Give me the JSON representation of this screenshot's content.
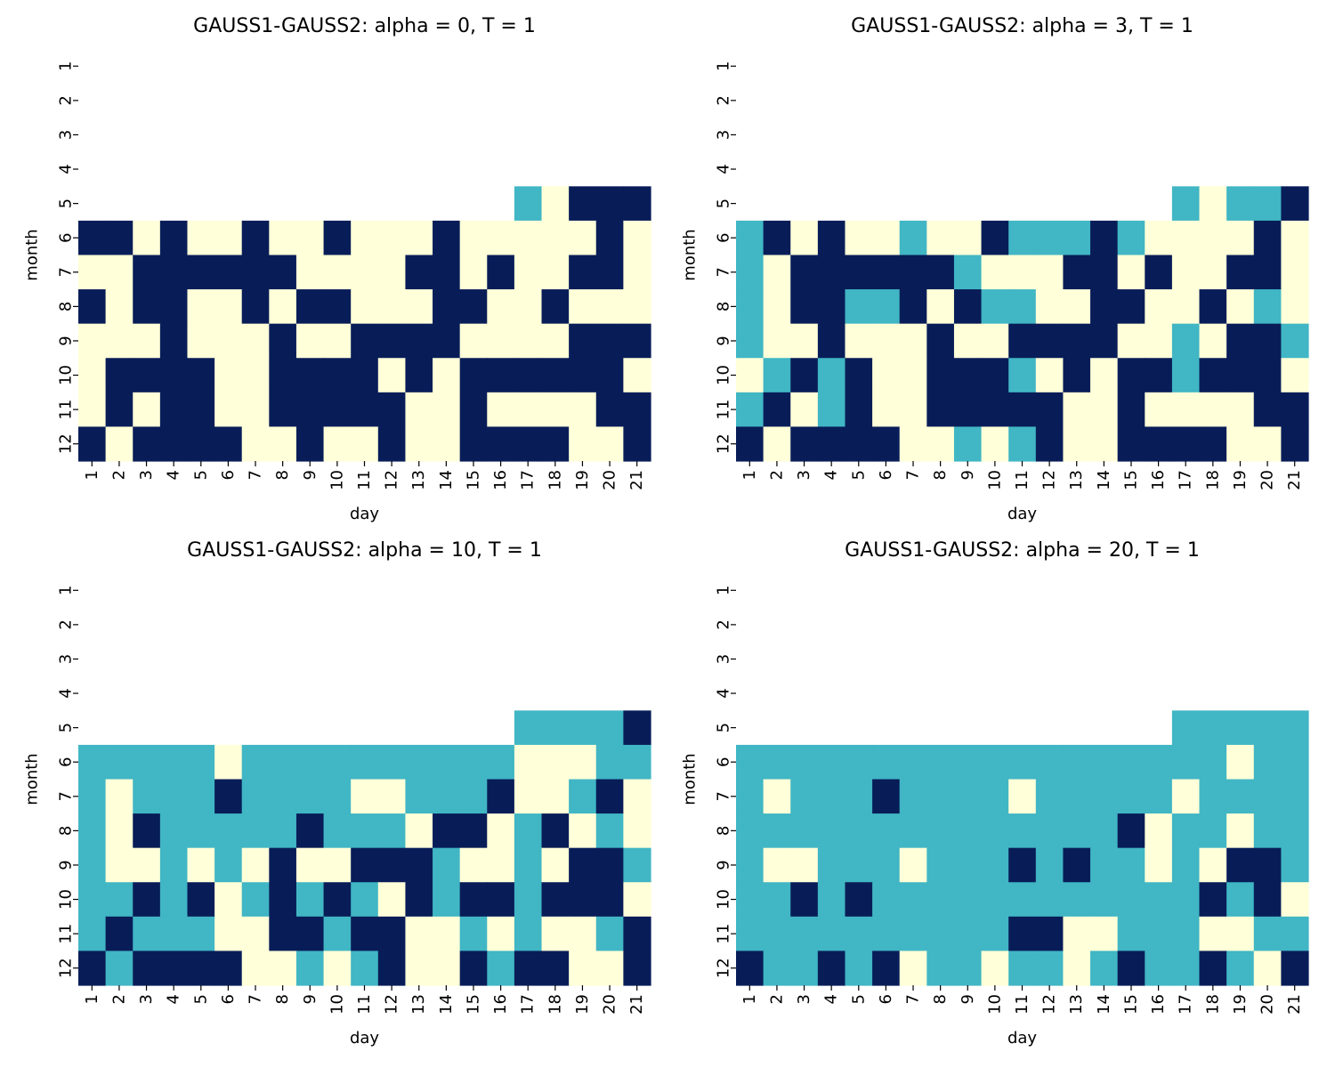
{
  "palette": {
    "0": "#ffffd9",
    "1": "#41b6c4",
    "2": "#081d58"
  },
  "chart_data": [
    {
      "type": "heatmap",
      "title": "GAUSS1-GAUSS2: alpha = 0, T = 1",
      "xlabel": "day",
      "ylabel": "month",
      "x": [
        "1",
        "2",
        "3",
        "4",
        "5",
        "6",
        "7",
        "8",
        "9",
        "10",
        "11",
        "12",
        "13",
        "14",
        "15",
        "16",
        "17",
        "18",
        "19",
        "20",
        "21"
      ],
      "y": [
        "1",
        "2",
        "3",
        "4",
        "5",
        "6",
        "7",
        "8",
        "9",
        "10",
        "11",
        "12"
      ],
      "values": [
        [
          null,
          null,
          null,
          null,
          null,
          null,
          null,
          null,
          null,
          null,
          null,
          null,
          null,
          null,
          null,
          null,
          null,
          null,
          null,
          null,
          null
        ],
        [
          null,
          null,
          null,
          null,
          null,
          null,
          null,
          null,
          null,
          null,
          null,
          null,
          null,
          null,
          null,
          null,
          null,
          null,
          null,
          null,
          null
        ],
        [
          null,
          null,
          null,
          null,
          null,
          null,
          null,
          null,
          null,
          null,
          null,
          null,
          null,
          null,
          null,
          null,
          null,
          null,
          null,
          null,
          null
        ],
        [
          null,
          null,
          null,
          null,
          null,
          null,
          null,
          null,
          null,
          null,
          null,
          null,
          null,
          null,
          null,
          null,
          null,
          null,
          null,
          null,
          null
        ],
        [
          null,
          null,
          null,
          null,
          null,
          null,
          null,
          null,
          null,
          null,
          null,
          null,
          null,
          null,
          null,
          null,
          1,
          0,
          2,
          2,
          2
        ],
        [
          2,
          2,
          0,
          2,
          0,
          0,
          2,
          0,
          0,
          2,
          0,
          0,
          0,
          2,
          0,
          0,
          0,
          0,
          0,
          2,
          0
        ],
        [
          0,
          0,
          2,
          2,
          2,
          2,
          2,
          2,
          0,
          0,
          0,
          0,
          2,
          2,
          0,
          2,
          0,
          0,
          2,
          2,
          0
        ],
        [
          2,
          0,
          2,
          2,
          0,
          0,
          2,
          0,
          2,
          2,
          0,
          0,
          0,
          2,
          2,
          0,
          0,
          2,
          0,
          0,
          0
        ],
        [
          0,
          0,
          0,
          2,
          0,
          0,
          0,
          2,
          0,
          0,
          2,
          2,
          2,
          2,
          0,
          0,
          0,
          0,
          2,
          2,
          2
        ],
        [
          0,
          2,
          2,
          2,
          2,
          0,
          0,
          2,
          2,
          2,
          2,
          0,
          2,
          0,
          2,
          2,
          2,
          2,
          2,
          2,
          0
        ],
        [
          0,
          2,
          0,
          2,
          2,
          0,
          0,
          2,
          2,
          2,
          2,
          2,
          0,
          0,
          2,
          0,
          0,
          0,
          0,
          2,
          2
        ],
        [
          2,
          0,
          2,
          2,
          2,
          2,
          0,
          0,
          2,
          0,
          0,
          2,
          0,
          0,
          2,
          2,
          2,
          2,
          0,
          0,
          2
        ]
      ]
    },
    {
      "type": "heatmap",
      "title": "GAUSS1-GAUSS2: alpha = 3, T = 1",
      "xlabel": "day",
      "ylabel": "month",
      "x": [
        "1",
        "2",
        "3",
        "4",
        "5",
        "6",
        "7",
        "8",
        "9",
        "10",
        "11",
        "12",
        "13",
        "14",
        "15",
        "16",
        "17",
        "18",
        "19",
        "20",
        "21"
      ],
      "y": [
        "1",
        "2",
        "3",
        "4",
        "5",
        "6",
        "7",
        "8",
        "9",
        "10",
        "11",
        "12"
      ],
      "values": [
        [
          null,
          null,
          null,
          null,
          null,
          null,
          null,
          null,
          null,
          null,
          null,
          null,
          null,
          null,
          null,
          null,
          null,
          null,
          null,
          null,
          null
        ],
        [
          null,
          null,
          null,
          null,
          null,
          null,
          null,
          null,
          null,
          null,
          null,
          null,
          null,
          null,
          null,
          null,
          null,
          null,
          null,
          null,
          null
        ],
        [
          null,
          null,
          null,
          null,
          null,
          null,
          null,
          null,
          null,
          null,
          null,
          null,
          null,
          null,
          null,
          null,
          null,
          null,
          null,
          null,
          null
        ],
        [
          null,
          null,
          null,
          null,
          null,
          null,
          null,
          null,
          null,
          null,
          null,
          null,
          null,
          null,
          null,
          null,
          null,
          null,
          null,
          null,
          null
        ],
        [
          null,
          null,
          null,
          null,
          null,
          null,
          null,
          null,
          null,
          null,
          null,
          null,
          null,
          null,
          null,
          null,
          1,
          0,
          1,
          1,
          2
        ],
        [
          1,
          2,
          0,
          2,
          0,
          0,
          1,
          0,
          0,
          2,
          1,
          1,
          1,
          2,
          1,
          0,
          0,
          0,
          0,
          2,
          0
        ],
        [
          1,
          0,
          2,
          2,
          2,
          2,
          2,
          2,
          1,
          0,
          0,
          0,
          2,
          2,
          0,
          2,
          0,
          0,
          2,
          2,
          0
        ],
        [
          1,
          0,
          2,
          2,
          1,
          1,
          2,
          0,
          2,
          1,
          1,
          0,
          0,
          2,
          2,
          0,
          0,
          2,
          0,
          1,
          0
        ],
        [
          1,
          0,
          0,
          2,
          0,
          0,
          0,
          2,
          0,
          0,
          2,
          2,
          2,
          2,
          0,
          0,
          1,
          0,
          2,
          2,
          1
        ],
        [
          0,
          1,
          2,
          1,
          2,
          0,
          0,
          2,
          2,
          2,
          1,
          0,
          2,
          0,
          2,
          2,
          1,
          2,
          2,
          2,
          0
        ],
        [
          1,
          2,
          0,
          1,
          2,
          0,
          0,
          2,
          2,
          2,
          2,
          2,
          0,
          0,
          2,
          0,
          0,
          0,
          0,
          2,
          2
        ],
        [
          2,
          0,
          2,
          2,
          2,
          2,
          0,
          0,
          1,
          0,
          1,
          2,
          0,
          0,
          2,
          2,
          2,
          2,
          0,
          0,
          2
        ]
      ]
    },
    {
      "type": "heatmap",
      "title": "GAUSS1-GAUSS2: alpha = 10, T = 1",
      "xlabel": "day",
      "ylabel": "month",
      "x": [
        "1",
        "2",
        "3",
        "4",
        "5",
        "6",
        "7",
        "8",
        "9",
        "10",
        "11",
        "12",
        "13",
        "14",
        "15",
        "16",
        "17",
        "18",
        "19",
        "20",
        "21"
      ],
      "y": [
        "1",
        "2",
        "3",
        "4",
        "5",
        "6",
        "7",
        "8",
        "9",
        "10",
        "11",
        "12"
      ],
      "values": [
        [
          null,
          null,
          null,
          null,
          null,
          null,
          null,
          null,
          null,
          null,
          null,
          null,
          null,
          null,
          null,
          null,
          null,
          null,
          null,
          null,
          null
        ],
        [
          null,
          null,
          null,
          null,
          null,
          null,
          null,
          null,
          null,
          null,
          null,
          null,
          null,
          null,
          null,
          null,
          null,
          null,
          null,
          null,
          null
        ],
        [
          null,
          null,
          null,
          null,
          null,
          null,
          null,
          null,
          null,
          null,
          null,
          null,
          null,
          null,
          null,
          null,
          null,
          null,
          null,
          null,
          null
        ],
        [
          null,
          null,
          null,
          null,
          null,
          null,
          null,
          null,
          null,
          null,
          null,
          null,
          null,
          null,
          null,
          null,
          null,
          null,
          null,
          null,
          null
        ],
        [
          null,
          null,
          null,
          null,
          null,
          null,
          null,
          null,
          null,
          null,
          null,
          null,
          null,
          null,
          null,
          null,
          1,
          1,
          1,
          1,
          2
        ],
        [
          1,
          1,
          1,
          1,
          1,
          0,
          1,
          1,
          1,
          1,
          1,
          1,
          1,
          1,
          1,
          1,
          0,
          0,
          0,
          1,
          1
        ],
        [
          1,
          0,
          1,
          1,
          1,
          2,
          1,
          1,
          1,
          1,
          0,
          0,
          1,
          1,
          1,
          2,
          0,
          0,
          1,
          2,
          0
        ],
        [
          1,
          0,
          2,
          1,
          1,
          1,
          1,
          1,
          2,
          1,
          1,
          1,
          0,
          2,
          2,
          0,
          1,
          2,
          0,
          1,
          0
        ],
        [
          1,
          0,
          0,
          1,
          0,
          1,
          0,
          2,
          0,
          0,
          2,
          2,
          2,
          1,
          0,
          0,
          1,
          0,
          2,
          2,
          1
        ],
        [
          1,
          1,
          2,
          1,
          2,
          0,
          1,
          2,
          1,
          2,
          1,
          0,
          2,
          1,
          2,
          2,
          1,
          2,
          2,
          2,
          0
        ],
        [
          1,
          2,
          1,
          1,
          1,
          0,
          0,
          2,
          2,
          1,
          2,
          2,
          0,
          0,
          1,
          0,
          1,
          0,
          0,
          1,
          2
        ],
        [
          2,
          1,
          2,
          2,
          2,
          2,
          0,
          0,
          1,
          0,
          1,
          2,
          0,
          0,
          2,
          1,
          2,
          2,
          0,
          0,
          2
        ]
      ]
    },
    {
      "type": "heatmap",
      "title": "GAUSS1-GAUSS2: alpha = 20, T = 1",
      "xlabel": "day",
      "ylabel": "month",
      "x": [
        "1",
        "2",
        "3",
        "4",
        "5",
        "6",
        "7",
        "8",
        "9",
        "10",
        "11",
        "12",
        "13",
        "14",
        "15",
        "16",
        "17",
        "18",
        "19",
        "20",
        "21"
      ],
      "y": [
        "1",
        "2",
        "3",
        "4",
        "5",
        "6",
        "7",
        "8",
        "9",
        "10",
        "11",
        "12"
      ],
      "values": [
        [
          null,
          null,
          null,
          null,
          null,
          null,
          null,
          null,
          null,
          null,
          null,
          null,
          null,
          null,
          null,
          null,
          null,
          null,
          null,
          null,
          null
        ],
        [
          null,
          null,
          null,
          null,
          null,
          null,
          null,
          null,
          null,
          null,
          null,
          null,
          null,
          null,
          null,
          null,
          null,
          null,
          null,
          null,
          null
        ],
        [
          null,
          null,
          null,
          null,
          null,
          null,
          null,
          null,
          null,
          null,
          null,
          null,
          null,
          null,
          null,
          null,
          null,
          null,
          null,
          null,
          null
        ],
        [
          null,
          null,
          null,
          null,
          null,
          null,
          null,
          null,
          null,
          null,
          null,
          null,
          null,
          null,
          null,
          null,
          null,
          null,
          null,
          null,
          null
        ],
        [
          null,
          null,
          null,
          null,
          null,
          null,
          null,
          null,
          null,
          null,
          null,
          null,
          null,
          null,
          null,
          null,
          1,
          1,
          1,
          1,
          1
        ],
        [
          1,
          1,
          1,
          1,
          1,
          1,
          1,
          1,
          1,
          1,
          1,
          1,
          1,
          1,
          1,
          1,
          1,
          1,
          0,
          1,
          1
        ],
        [
          1,
          0,
          1,
          1,
          1,
          2,
          1,
          1,
          1,
          1,
          0,
          1,
          1,
          1,
          1,
          1,
          0,
          1,
          1,
          1,
          1
        ],
        [
          1,
          1,
          1,
          1,
          1,
          1,
          1,
          1,
          1,
          1,
          1,
          1,
          1,
          1,
          2,
          0,
          1,
          1,
          0,
          1,
          1
        ],
        [
          1,
          0,
          0,
          1,
          1,
          1,
          0,
          1,
          1,
          1,
          2,
          1,
          2,
          1,
          1,
          0,
          1,
          0,
          2,
          2,
          1
        ],
        [
          1,
          1,
          2,
          1,
          2,
          1,
          1,
          1,
          1,
          1,
          1,
          1,
          1,
          1,
          1,
          1,
          1,
          2,
          1,
          2,
          0
        ],
        [
          1,
          1,
          1,
          1,
          1,
          1,
          1,
          1,
          1,
          1,
          2,
          2,
          0,
          0,
          1,
          1,
          1,
          0,
          0,
          1,
          1
        ],
        [
          2,
          1,
          1,
          2,
          1,
          2,
          0,
          1,
          1,
          0,
          1,
          1,
          0,
          1,
          2,
          1,
          1,
          2,
          1,
          0,
          2
        ]
      ]
    }
  ]
}
